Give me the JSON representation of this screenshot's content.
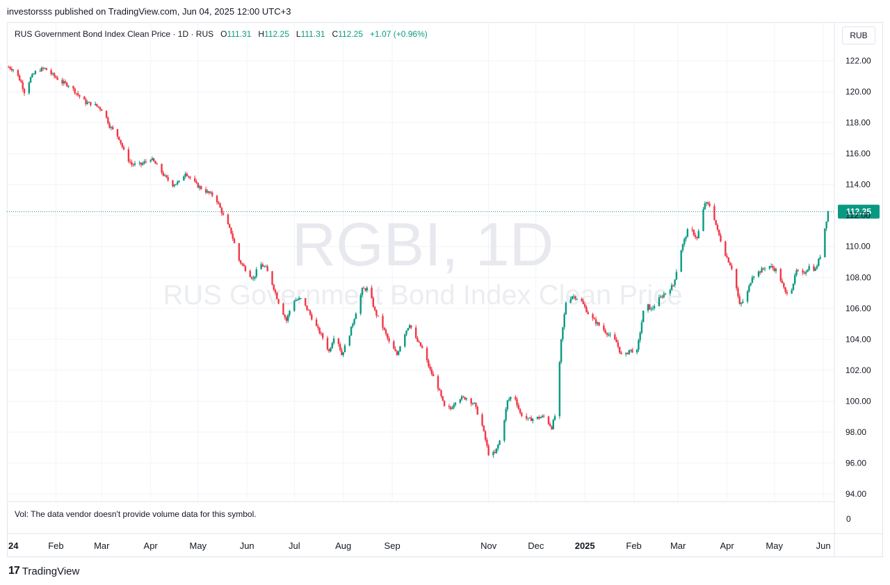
{
  "header": {
    "published": "investorsss published on TradingView.com, Jun 04, 2025 12:00 UTC+3"
  },
  "legend": {
    "symbol": "RUS Government Bond Index Clean Price · 1D · RUS",
    "o_label": "O",
    "o_value": "111.31",
    "h_label": "H",
    "h_value": "112.25",
    "l_label": "L",
    "l_value": "111.31",
    "c_label": "C",
    "c_value": "112.25",
    "change": "+1.07 (+0.96%)"
  },
  "currency": "RUB",
  "watermark": {
    "line1": "RGBI, 1D",
    "line2": "RUS Government Bond Index Clean Price"
  },
  "volume_note": "Vol: The data vendor doesn't provide volume data for this symbol.",
  "volume_axis_zero": "0",
  "brand": {
    "logo": "17",
    "name": "TradingView"
  },
  "colors": {
    "up": "#089981",
    "down": "#f23645",
    "grid": "#f0f3fa",
    "last_price_bg": "#089981"
  },
  "chart_data": {
    "type": "candlestick",
    "title": "RUS Government Bond Index Clean Price",
    "interval": "1D",
    "ylim": [
      93.5,
      124.5
    ],
    "y_ticks": [
      "94.00",
      "96.00",
      "98.00",
      "100.00",
      "102.00",
      "104.00",
      "106.00",
      "108.00",
      "110.00",
      "112.00",
      "114.00",
      "116.00",
      "118.00",
      "120.00",
      "122.00"
    ],
    "x_ticks": [
      "24",
      "Feb",
      "Mar",
      "Apr",
      "May",
      "Jun",
      "Jul",
      "Aug",
      "Sep",
      "Nov",
      "Dec",
      "2025",
      "Feb",
      "Mar",
      "Apr",
      "May",
      "Jun"
    ],
    "last_price": 112.25,
    "last_price_label": "112.25",
    "grid": true,
    "close_path": [
      [
        "2024-01-02",
        121.6
      ],
      [
        "2024-01-06",
        121.4
      ],
      [
        "2024-01-10",
        120.6
      ],
      [
        "2024-01-12",
        120.0
      ],
      [
        "2024-01-16",
        120.9
      ],
      [
        "2024-01-20",
        121.4
      ],
      [
        "2024-01-25",
        121.5
      ],
      [
        "2024-01-31",
        121.0
      ],
      [
        "2024-02-05",
        120.6
      ],
      [
        "2024-02-10",
        120.4
      ],
      [
        "2024-02-15",
        119.8
      ],
      [
        "2024-02-20",
        119.3
      ],
      [
        "2024-02-25",
        119.2
      ],
      [
        "2024-03-02",
        118.8
      ],
      [
        "2024-03-06",
        117.8
      ],
      [
        "2024-03-12",
        117.0
      ],
      [
        "2024-03-16",
        115.9
      ],
      [
        "2024-03-20",
        115.3
      ],
      [
        "2024-03-26",
        115.3
      ],
      [
        "2024-04-01",
        115.7
      ],
      [
        "2024-04-06",
        115.1
      ],
      [
        "2024-04-10",
        114.5
      ],
      [
        "2024-04-15",
        114.0
      ],
      [
        "2024-04-20",
        114.2
      ],
      [
        "2024-04-23",
        114.8
      ],
      [
        "2024-04-27",
        114.3
      ],
      [
        "2024-05-01",
        113.9
      ],
      [
        "2024-05-07",
        113.5
      ],
      [
        "2024-05-12",
        113.2
      ],
      [
        "2024-05-17",
        112.0
      ],
      [
        "2024-05-22",
        110.9
      ],
      [
        "2024-05-27",
        109.1
      ],
      [
        "2024-06-01",
        108.4
      ],
      [
        "2024-06-05",
        107.9
      ],
      [
        "2024-06-09",
        108.9
      ],
      [
        "2024-06-13",
        108.6
      ],
      [
        "2024-06-17",
        107.6
      ],
      [
        "2024-06-21",
        106.4
      ],
      [
        "2024-06-26",
        105.2
      ],
      [
        "2024-06-30",
        106.5
      ],
      [
        "2024-07-05",
        106.6
      ],
      [
        "2024-07-10",
        105.8
      ],
      [
        "2024-07-15",
        104.8
      ],
      [
        "2024-07-19",
        104.1
      ],
      [
        "2024-07-23",
        103.2
      ],
      [
        "2024-07-27",
        104.5
      ],
      [
        "2024-07-31",
        103.0
      ],
      [
        "2024-08-04",
        104.0
      ],
      [
        "2024-08-08",
        105.4
      ],
      [
        "2024-08-13",
        107.2
      ],
      [
        "2024-08-17",
        107.3
      ],
      [
        "2024-08-21",
        105.8
      ],
      [
        "2024-08-26",
        104.8
      ],
      [
        "2024-08-30",
        103.8
      ],
      [
        "2024-09-04",
        103.0
      ],
      [
        "2024-09-08",
        104.2
      ],
      [
        "2024-09-12",
        105.0
      ],
      [
        "2024-09-16",
        104.0
      ],
      [
        "2024-09-20",
        103.4
      ],
      [
        "2024-09-25",
        102.0
      ],
      [
        "2024-09-30",
        100.9
      ],
      [
        "2024-10-04",
        99.6
      ],
      [
        "2024-10-08",
        99.5
      ],
      [
        "2024-10-12",
        100.2
      ],
      [
        "2024-10-18",
        100.2
      ],
      [
        "2024-10-23",
        99.8
      ],
      [
        "2024-10-28",
        98.4
      ],
      [
        "2024-11-01",
        96.6
      ],
      [
        "2024-11-05",
        96.6
      ],
      [
        "2024-11-09",
        97.7
      ],
      [
        "2024-11-13",
        100.0
      ],
      [
        "2024-11-17",
        100.5
      ],
      [
        "2024-11-21",
        99.2
      ],
      [
        "2024-11-26",
        98.8
      ],
      [
        "2024-12-01",
        98.9
      ],
      [
        "2024-12-06",
        99.0
      ],
      [
        "2024-12-11",
        98.3
      ],
      [
        "2024-12-14",
        99.4
      ],
      [
        "2024-12-17",
        103.9
      ],
      [
        "2024-12-20",
        106.4
      ],
      [
        "2024-12-24",
        106.8
      ],
      [
        "2024-12-29",
        106.6
      ],
      [
        "2025-01-04",
        105.5
      ],
      [
        "2025-01-10",
        104.9
      ],
      [
        "2025-01-16",
        104.3
      ],
      [
        "2025-01-21",
        103.8
      ],
      [
        "2025-01-25",
        102.7
      ],
      [
        "2025-01-29",
        103.3
      ],
      [
        "2025-02-03",
        103.2
      ],
      [
        "2025-02-08",
        106.4
      ],
      [
        "2025-02-12",
        105.9
      ],
      [
        "2025-02-16",
        106.5
      ],
      [
        "2025-02-21",
        107.0
      ],
      [
        "2025-02-26",
        107.5
      ],
      [
        "2025-03-03",
        109.8
      ],
      [
        "2025-03-08",
        111.3
      ],
      [
        "2025-03-13",
        110.5
      ],
      [
        "2025-03-18",
        112.8
      ],
      [
        "2025-03-22",
        112.6
      ],
      [
        "2025-03-26",
        111.0
      ],
      [
        "2025-03-31",
        109.5
      ],
      [
        "2025-04-05",
        108.4
      ],
      [
        "2025-04-09",
        106.2
      ],
      [
        "2025-04-13",
        106.7
      ],
      [
        "2025-04-17",
        108.1
      ],
      [
        "2025-04-22",
        108.4
      ],
      [
        "2025-04-27",
        108.8
      ],
      [
        "2025-05-03",
        108.4
      ],
      [
        "2025-05-08",
        107.0
      ],
      [
        "2025-05-12",
        107.3
      ],
      [
        "2025-05-15",
        108.4
      ],
      [
        "2025-05-19",
        108.2
      ],
      [
        "2025-05-23",
        108.7
      ],
      [
        "2025-05-27",
        108.5
      ],
      [
        "2025-05-30",
        109.4
      ],
      [
        "2025-06-02",
        111.2
      ],
      [
        "2025-06-04",
        112.25
      ]
    ]
  }
}
